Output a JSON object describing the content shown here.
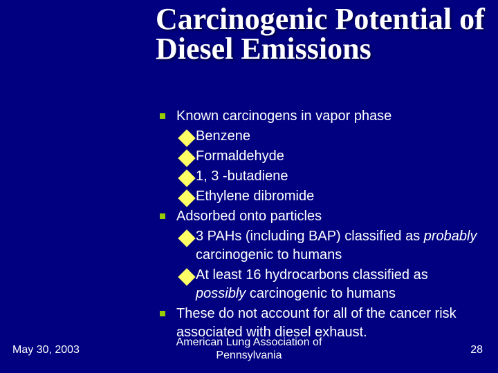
{
  "slide": {
    "background_color": "#000080",
    "text_color": "#ffffff",
    "title": "Carcinogenic Potential of Diesel Emissions",
    "title_font_family": "Times New Roman",
    "title_fontsize": 44,
    "title_fontweight": "bold",
    "body_fontsize": 20,
    "bullet_l1_color": "#99cc00",
    "bullet_l1_shape": "square",
    "bullet_l2_color": "#ffff66",
    "bullet_l2_shape": "diamond",
    "bullets": [
      {
        "level": 1,
        "text": "Known carcinogens in vapor phase"
      },
      {
        "level": 2,
        "text": "Benzene"
      },
      {
        "level": 2,
        "text": "Formaldehyde"
      },
      {
        "level": 2,
        "text": "1, 3 -butadiene"
      },
      {
        "level": 2,
        "text": "Ethylene dibromide"
      },
      {
        "level": 1,
        "text": "Adsorbed onto particles"
      },
      {
        "level": 2,
        "html": "3 PAHs (including BAP) classified as <span class=\"italic\">probably</span> carcinogenic to humans"
      },
      {
        "level": 2,
        "html": "At least 16 hydrocarbons classified as <span class=\"italic\">possibly</span> carcinogenic to humans"
      },
      {
        "level": 1,
        "text": "These do not account for all of the cancer risk associated with diesel exhaust."
      }
    ],
    "footer": {
      "date": "May 30, 2003",
      "center_line1": "American Lung Association of",
      "center_line2": "Pennsylvania",
      "page_number": "28"
    }
  }
}
